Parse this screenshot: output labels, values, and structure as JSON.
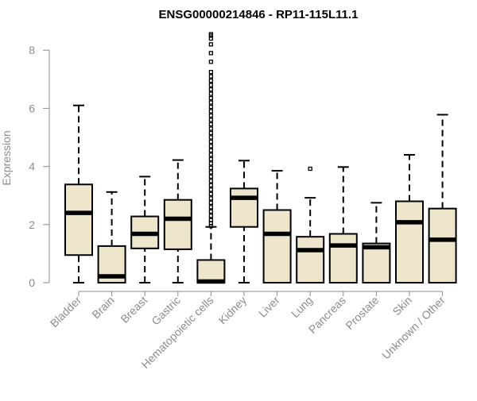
{
  "chart_data": {
    "type": "boxplot",
    "title": "ENSG00000214846 - RP11-115L11.1",
    "xlabel": "",
    "ylabel": "Expression",
    "ylim": [
      0,
      8.6
    ],
    "yticks": [
      0,
      2,
      4,
      6,
      8
    ],
    "grid": false,
    "box_fill": "#ede6cd",
    "box_stroke": "#000000",
    "categories": [
      "Bladder",
      "Brain",
      "Breast",
      "Gastric",
      "Hematopoietic cells",
      "Kidney",
      "Liver",
      "Lung",
      "Pancreas",
      "Prostate",
      "Skin",
      "Unknown / Other"
    ],
    "boxes": [
      {
        "min": 0,
        "q1": 0.95,
        "median": 2.4,
        "q3": 3.38,
        "max": 6.1,
        "outliers": []
      },
      {
        "min": 0,
        "q1": 0,
        "median": 0.22,
        "q3": 1.26,
        "max": 3.12,
        "outliers": []
      },
      {
        "min": 0,
        "q1": 1.18,
        "median": 1.68,
        "q3": 2.28,
        "max": 3.65,
        "outliers": []
      },
      {
        "min": 0,
        "q1": 1.15,
        "median": 2.2,
        "q3": 2.85,
        "max": 4.22,
        "outliers": []
      },
      {
        "min": 0,
        "q1": 0,
        "median": 0.04,
        "q3": 0.78,
        "max": 1.92,
        "outliers": [
          1.95,
          2.05,
          2.15,
          2.3,
          2.45,
          2.6,
          2.75,
          2.9,
          3.05,
          3.2,
          3.35,
          3.5,
          3.65,
          3.8,
          3.95,
          4.1,
          4.25,
          4.4,
          4.55,
          4.7,
          4.85,
          5.0,
          5.15,
          5.3,
          5.45,
          5.6,
          5.75,
          5.9,
          6.05,
          6.2,
          6.35,
          6.5,
          6.65,
          6.8,
          6.95,
          7.1,
          7.25,
          7.6,
          7.9,
          8.2,
          8.4,
          8.5,
          8.55
        ]
      },
      {
        "min": 0,
        "q1": 1.92,
        "median": 2.92,
        "q3": 3.24,
        "max": 4.2,
        "outliers": []
      },
      {
        "min": 0,
        "q1": 0,
        "median": 1.68,
        "q3": 2.5,
        "max": 3.85,
        "outliers": []
      },
      {
        "min": 0,
        "q1": 0,
        "median": 1.12,
        "q3": 1.58,
        "max": 2.92,
        "outliers": [
          3.92
        ]
      },
      {
        "min": 0,
        "q1": 0,
        "median": 1.28,
        "q3": 1.68,
        "max": 3.98,
        "outliers": []
      },
      {
        "min": 0,
        "q1": 0,
        "median": 1.22,
        "q3": 1.35,
        "max": 2.75,
        "outliers": []
      },
      {
        "min": 0,
        "q1": 0,
        "median": 2.08,
        "q3": 2.8,
        "max": 4.4,
        "outliers": []
      },
      {
        "min": 0,
        "q1": 0,
        "median": 1.48,
        "q3": 2.55,
        "max": 5.78,
        "outliers": []
      }
    ]
  }
}
